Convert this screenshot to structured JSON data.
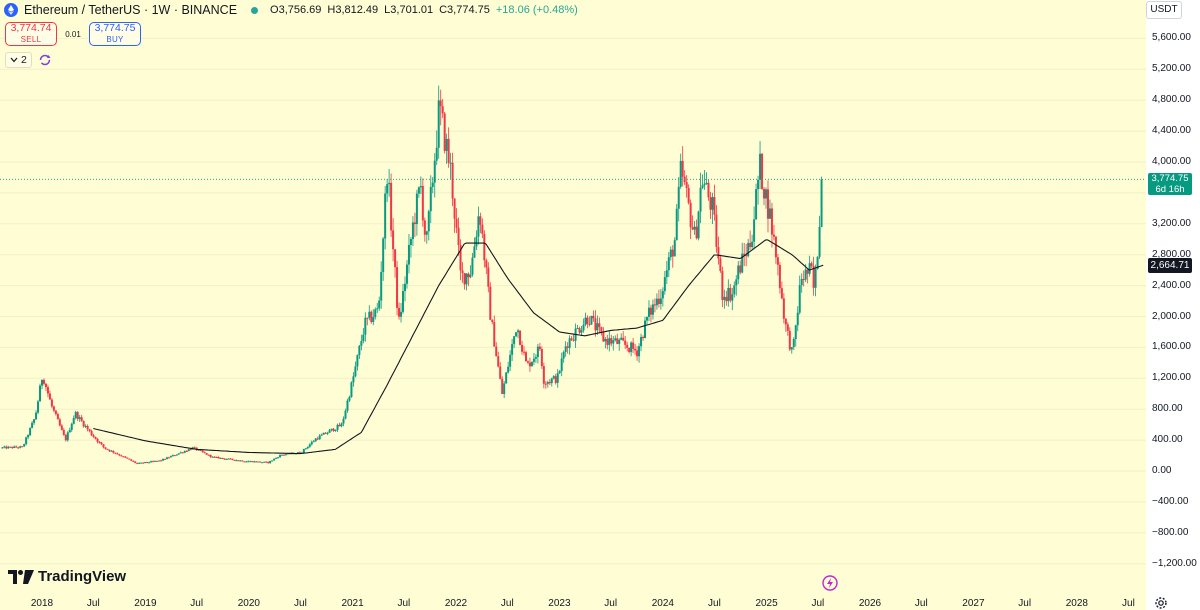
{
  "header": {
    "symbol_title": "Ethereum / TetherUS · 1W · BINANCE",
    "ohlc": {
      "open": "O3,756.69",
      "high": "H3,812.49",
      "low": "L3,701.01",
      "close": "C3,774.75",
      "change": "+18.06 (+0.48%)"
    }
  },
  "trade": {
    "sell_price": "3,774.74",
    "sell_label": "SELL",
    "spread": "0.01",
    "buy_price": "3,774.75",
    "buy_label": "BUY"
  },
  "indicators": {
    "count": "2"
  },
  "currency_label": "USDT",
  "price_axis_labels": [
    "5,600.00",
    "5,200.00",
    "4,800.00",
    "4,400.00",
    "4,000.00",
    "3,200.00",
    "2,800.00",
    "2,400.00",
    "2,000.00",
    "1,600.00",
    "1,200.00",
    "800.00",
    "400.00",
    "0.00",
    "−400.00",
    "−800.00",
    "−1,200.00"
  ],
  "time_axis_labels": [
    "2018",
    "Jul",
    "2019",
    "Jul",
    "2020",
    "Jul",
    "2021",
    "Jul",
    "2022",
    "Jul",
    "2023",
    "Jul",
    "2024",
    "Jul",
    "2025",
    "Jul",
    "2026",
    "Jul",
    "2027",
    "Jul",
    "2028",
    "Jul"
  ],
  "badges": {
    "last_price": "3,774.75",
    "countdown": "6d 16h",
    "ma_value": "2,664.71"
  },
  "branding": {
    "logo_text": "TradingView"
  },
  "colors": {
    "background": "#fffdd3",
    "up": "#089981",
    "down": "#f23645",
    "ma_line": "#131722",
    "grid": "#f2f0c8",
    "price_line": "#26a69a"
  },
  "icons": {
    "settings": "gear-icon",
    "replay": "lightning-icon",
    "indicator_toggle": "sync-icon"
  },
  "chart_data": {
    "type": "candlestick",
    "timeframe": "1W",
    "symbol": "ETHUSDT",
    "ylim": [
      -1300,
      5800
    ],
    "x_range": [
      "2017-08-14",
      "2028-11-01"
    ],
    "last_price": 3774.75,
    "moving_average_last": 2664.71,
    "price_path_anchors": [
      [
        "2017-08-14",
        300
      ],
      [
        "2017-11-01",
        310
      ],
      [
        "2017-12-15",
        700
      ],
      [
        "2018-01-10",
        1250
      ],
      [
        "2018-02-10",
        850
      ],
      [
        "2018-04-01",
        400
      ],
      [
        "2018-05-05",
        750
      ],
      [
        "2018-07-01",
        480
      ],
      [
        "2018-08-15",
        300
      ],
      [
        "2018-10-01",
        220
      ],
      [
        "2018-12-10",
        95
      ],
      [
        "2019-03-01",
        135
      ],
      [
        "2019-06-25",
        300
      ],
      [
        "2019-09-01",
        180
      ],
      [
        "2019-12-20",
        130
      ],
      [
        "2020-03-16",
        110
      ],
      [
        "2020-05-01",
        210
      ],
      [
        "2020-07-10",
        240
      ],
      [
        "2020-09-01",
        420
      ],
      [
        "2020-12-01",
        600
      ],
      [
        "2021-01-10",
        1200
      ],
      [
        "2021-02-20",
        1900
      ],
      [
        "2021-04-10",
        2100
      ],
      [
        "2021-05-10",
        3900
      ],
      [
        "2021-06-20",
        1900
      ],
      [
        "2021-08-10",
        3200
      ],
      [
        "2021-09-05",
        3700
      ],
      [
        "2021-09-25",
        2900
      ],
      [
        "2021-11-10",
        4700
      ],
      [
        "2021-12-20",
        3900
      ],
      [
        "2022-01-25",
        2500
      ],
      [
        "2022-03-01",
        2600
      ],
      [
        "2022-04-01",
        3400
      ],
      [
        "2022-05-10",
        2000
      ],
      [
        "2022-06-20",
        1000
      ],
      [
        "2022-08-10",
        1900
      ],
      [
        "2022-09-15",
        1350
      ],
      [
        "2022-11-01",
        1600
      ],
      [
        "2022-11-15",
        1150
      ],
      [
        "2023-01-01",
        1200
      ],
      [
        "2023-02-01",
        1650
      ],
      [
        "2023-04-20",
        2000
      ],
      [
        "2023-06-15",
        1700
      ],
      [
        "2023-08-15",
        1650
      ],
      [
        "2023-10-10",
        1550
      ],
      [
        "2023-11-15",
        2000
      ],
      [
        "2024-01-01",
        2300
      ],
      [
        "2024-02-20",
        3000
      ],
      [
        "2024-03-12",
        3900
      ],
      [
        "2024-05-01",
        3000
      ],
      [
        "2024-05-25",
        3800
      ],
      [
        "2024-07-01",
        3400
      ],
      [
        "2024-08-05",
        2300
      ],
      [
        "2024-09-10",
        2300
      ],
      [
        "2024-10-01",
        2600
      ],
      [
        "2024-11-15",
        3000
      ],
      [
        "2024-12-15",
        3950
      ],
      [
        "2025-01-20",
        3300
      ],
      [
        "2025-02-15",
        2700
      ],
      [
        "2025-03-15",
        1900
      ],
      [
        "2025-04-10",
        1500
      ],
      [
        "2025-05-10",
        2500
      ],
      [
        "2025-06-15",
        2600
      ],
      [
        "2025-06-25",
        2300
      ],
      [
        "2025-07-10",
        3000
      ],
      [
        "2025-07-20",
        3774.75
      ]
    ],
    "moving_average_anchors": [
      [
        "2018-07-01",
        550
      ],
      [
        "2019-01-01",
        390
      ],
      [
        "2019-07-01",
        280
      ],
      [
        "2020-01-01",
        240
      ],
      [
        "2020-07-01",
        225
      ],
      [
        "2020-11-01",
        280
      ],
      [
        "2021-02-01",
        500
      ],
      [
        "2021-05-01",
        1100
      ],
      [
        "2021-08-01",
        1750
      ],
      [
        "2021-11-01",
        2400
      ],
      [
        "2022-02-01",
        2950
      ],
      [
        "2022-04-15",
        2950
      ],
      [
        "2022-07-01",
        2500
      ],
      [
        "2022-10-01",
        2050
      ],
      [
        "2023-01-01",
        1800
      ],
      [
        "2023-04-01",
        1750
      ],
      [
        "2023-07-01",
        1820
      ],
      [
        "2023-10-01",
        1850
      ],
      [
        "2024-01-01",
        1950
      ],
      [
        "2024-04-01",
        2400
      ],
      [
        "2024-07-01",
        2800
      ],
      [
        "2024-10-01",
        2750
      ],
      [
        "2025-01-01",
        3000
      ],
      [
        "2025-04-01",
        2800
      ],
      [
        "2025-06-01",
        2600
      ],
      [
        "2025-07-20",
        2664.71
      ]
    ]
  }
}
